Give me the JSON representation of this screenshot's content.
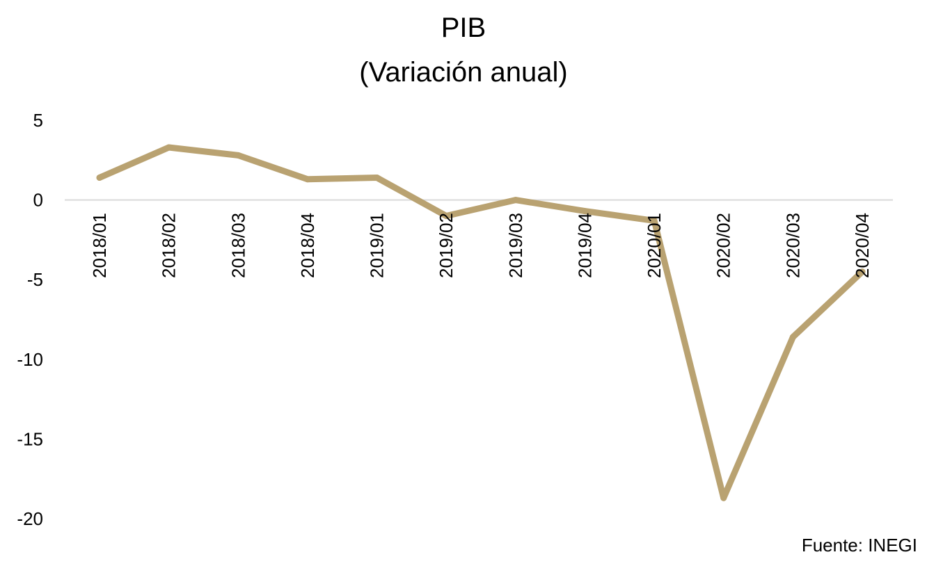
{
  "chart_data": {
    "type": "line",
    "title": "PIB",
    "subtitle": "(Variación anual)",
    "xlabel": "",
    "ylabel": "",
    "categories": [
      "2018/01",
      "2018/02",
      "2018/03",
      "2018/04",
      "2019/01",
      "2019/02",
      "2019/03",
      "2019/04",
      "2020/01",
      "2020/02",
      "2020/03",
      "2020/04"
    ],
    "series": [
      {
        "values": [
          1.4,
          3.3,
          2.8,
          1.3,
          1.4,
          -1.0,
          0.0,
          -0.7,
          -1.3,
          -18.7,
          -8.6,
          -4.5
        ],
        "color": "#b9a271"
      }
    ],
    "ylim": [
      -20,
      5
    ],
    "yticks": [
      "5",
      "0",
      "-5",
      "-10",
      "-15",
      "-20"
    ],
    "grid": false,
    "zero_line": true,
    "legend": "none",
    "source": "Fuente: INEGI"
  }
}
